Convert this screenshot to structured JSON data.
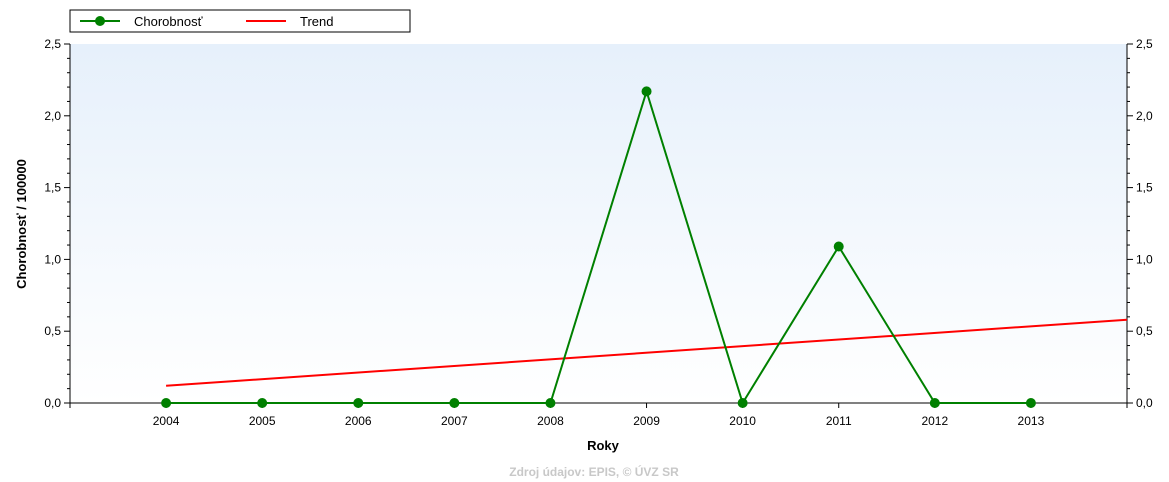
{
  "chart_data": {
    "type": "line",
    "xlabel": "Roky",
    "ylabel": "Chorobnosť / 100000",
    "categories": [
      "2004",
      "2005",
      "2006",
      "2007",
      "2008",
      "2009",
      "2010",
      "2011",
      "2012",
      "2013"
    ],
    "ylim": [
      0,
      2.5
    ],
    "yticks": [
      "0,0",
      "0,5",
      "1,0",
      "1,5",
      "2,0",
      "2,5"
    ],
    "series": [
      {
        "name": "Chorobnosť",
        "color": "#008000",
        "values": [
          0,
          0,
          0,
          0,
          0,
          2.17,
          0,
          1.09,
          0,
          0
        ],
        "markers": true
      },
      {
        "name": "Trend",
        "color": "#ff0000",
        "start": [
          2004,
          0.12
        ],
        "end": [
          2014,
          0.58
        ],
        "markers": false
      }
    ],
    "legend_position": "top-left",
    "grid": false,
    "background": "light-blue-gradient",
    "source": "Zdroj údajov: EPIS, © ÚVZ SR"
  }
}
